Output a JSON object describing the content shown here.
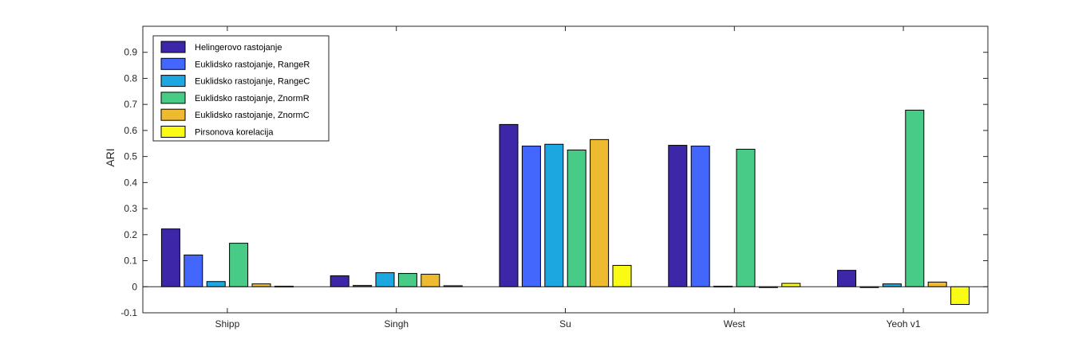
{
  "chart_data": {
    "type": "bar",
    "title": "",
    "xlabel": "",
    "ylabel": "ARI",
    "ylim": [
      -0.1,
      1.0
    ],
    "yticks": [
      -0.1,
      0,
      0.1,
      0.2,
      0.3,
      0.4,
      0.5,
      0.6,
      0.7,
      0.8,
      0.9
    ],
    "ytick_labels": [
      "-0.1",
      "0",
      "0.1",
      "0.2",
      "0.3",
      "0.4",
      "0.5",
      "0.6",
      "0.7",
      "0.8",
      "0.9"
    ],
    "grid": false,
    "legend_position": "top-left",
    "categories": [
      "Shipp",
      "Singh",
      "Su",
      "West",
      "Yeoh v1"
    ],
    "series": [
      {
        "name": "Helingerovo rastojanje",
        "color": "#3e26a8",
        "values": [
          0.222,
          0.042,
          0.623,
          0.543,
          0.063
        ]
      },
      {
        "name": "Euklidsko rastojanje, RangeR",
        "color": "#4367fd",
        "values": [
          0.122,
          0.005,
          0.54,
          0.54,
          0.0
        ]
      },
      {
        "name": "Euklidsko rastojanje, RangeC",
        "color": "#1ca7e1",
        "values": [
          0.02,
          0.054,
          0.547,
          0.002,
          0.011
        ]
      },
      {
        "name": "Euklidsko rastojanje, ZnormR",
        "color": "#48cb86",
        "values": [
          0.167,
          0.051,
          0.525,
          0.528,
          0.678
        ]
      },
      {
        "name": "Euklidsko rastojanje, ZnormC",
        "color": "#eeba30",
        "values": [
          0.011,
          0.048,
          0.565,
          -0.002,
          0.018
        ]
      },
      {
        "name": "Pirsonova korelacija",
        "color": "#f9fb15",
        "values": [
          0.002,
          0.004,
          0.082,
          0.013,
          -0.068
        ]
      }
    ]
  }
}
